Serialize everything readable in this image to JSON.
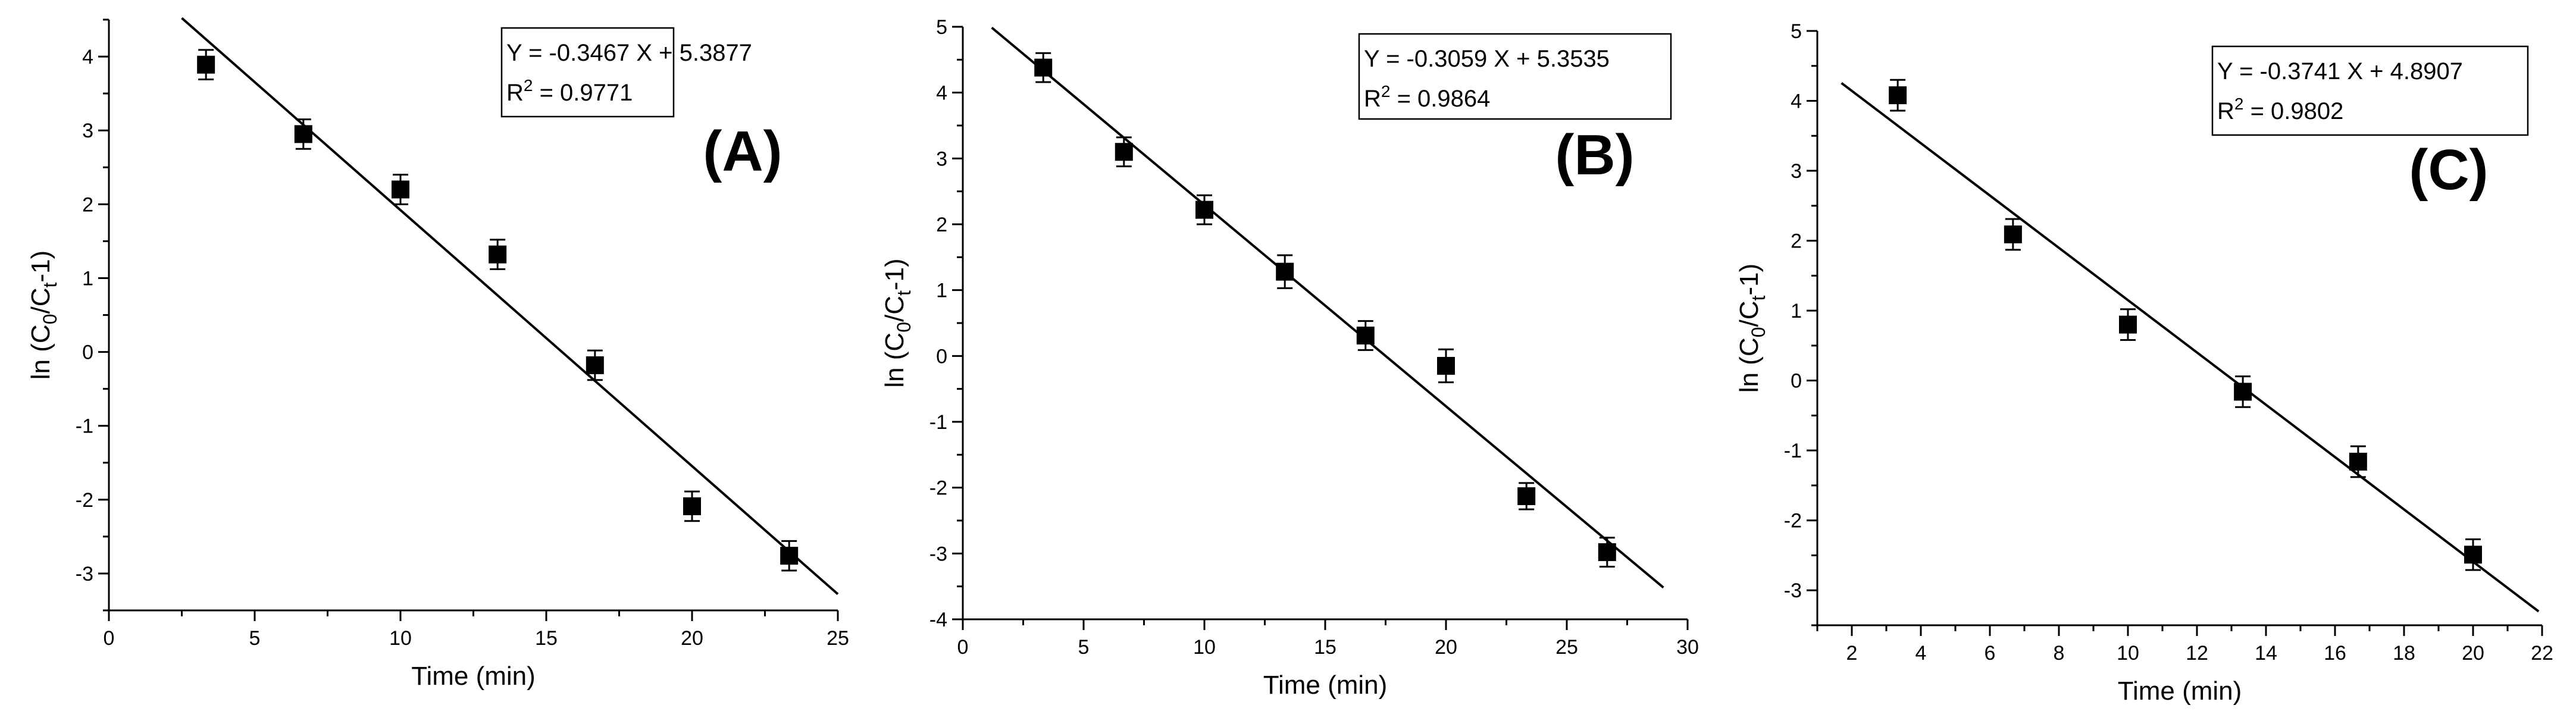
{
  "chart_data": [
    {
      "type": "scatter",
      "panel_label": "(A)",
      "xlabel": "Time (min)",
      "ylabel_prefix": "ln (C",
      "ylabel_sub0": "0",
      "ylabel_mid": "/C",
      "ylabel_sub1": "t",
      "ylabel_suffix": "-1)",
      "xlim": [
        0,
        25
      ],
      "ylim": [
        -3.5,
        4.5
      ],
      "xticks": [
        0,
        5,
        10,
        15,
        20,
        25
      ],
      "yticks": [
        -3,
        -2,
        -1,
        0,
        1,
        2,
        3,
        4
      ],
      "x": [
        3.33,
        6.67,
        10.0,
        13.33,
        16.67,
        20.0,
        23.33
      ],
      "y": [
        3.89,
        2.95,
        2.2,
        1.32,
        -0.18,
        -2.09,
        -2.76
      ],
      "yerr": [
        0.2,
        0.2,
        0.2,
        0.2,
        0.2,
        0.2,
        0.2
      ],
      "fit": {
        "slope": -0.3467,
        "intercept": 5.3877,
        "x_range": [
          2.5,
          25
        ]
      },
      "equation_line1": "Y = -0.3467 X + 5.3877",
      "r2_prefix": "R",
      "r2_sup": "2",
      "r2_value": " = 0.9771"
    },
    {
      "type": "scatter",
      "panel_label": "(B)",
      "xlabel": "Time (min)",
      "ylabel_prefix": "ln (C",
      "ylabel_sub0": "0",
      "ylabel_mid": "/C",
      "ylabel_sub1": "t",
      "ylabel_suffix": "-1)",
      "xlim": [
        0,
        30
      ],
      "ylim": [
        -4,
        5
      ],
      "xticks": [
        0,
        5,
        10,
        15,
        20,
        25,
        30
      ],
      "yticks": [
        -4,
        -3,
        -2,
        -1,
        0,
        1,
        2,
        3,
        4,
        5
      ],
      "x": [
        3.33,
        6.67,
        10.0,
        13.33,
        16.67,
        20.0,
        23.33,
        26.67
      ],
      "y": [
        4.38,
        3.1,
        2.22,
        1.28,
        0.31,
        -0.15,
        -2.13,
        -2.98
      ],
      "yerr": [
        0.22,
        0.22,
        0.22,
        0.25,
        0.22,
        0.25,
        0.2,
        0.22
      ],
      "fit": {
        "slope": -0.3059,
        "intercept": 5.3535,
        "x_range": [
          1.2,
          29
        ]
      },
      "equation_line1": "Y = -0.3059 X + 5.3535",
      "r2_prefix": "R",
      "r2_sup": "2",
      "r2_value": " = 0.9864"
    },
    {
      "type": "scatter",
      "panel_label": "(C)",
      "xlabel": "Time (min)",
      "ylabel_prefix": "ln (C",
      "ylabel_sub0": "0",
      "ylabel_mid": "/C",
      "ylabel_sub1": "t",
      "ylabel_suffix": "-1)",
      "xlim": [
        1,
        22
      ],
      "ylim": [
        -3.5,
        5
      ],
      "xticks": [
        2,
        4,
        6,
        8,
        10,
        12,
        14,
        16,
        18,
        20,
        22
      ],
      "yticks": [
        -3,
        -2,
        -1,
        0,
        1,
        2,
        3,
        4,
        5
      ],
      "x": [
        3.33,
        6.67,
        10.0,
        13.33,
        16.67,
        20.0
      ],
      "y": [
        4.08,
        2.09,
        0.8,
        -0.16,
        -1.16,
        -2.49
      ],
      "yerr": [
        0.22,
        0.22,
        0.22,
        0.22,
        0.22,
        0.22
      ],
      "fit": {
        "slope": -0.3741,
        "intercept": 4.8907,
        "x_range": [
          1.7,
          21.9
        ]
      },
      "equation_line1": "Y = -0.3741 X + 4.8907",
      "r2_prefix": "R",
      "r2_sup": "2",
      "r2_value": " = 0.9802"
    }
  ]
}
